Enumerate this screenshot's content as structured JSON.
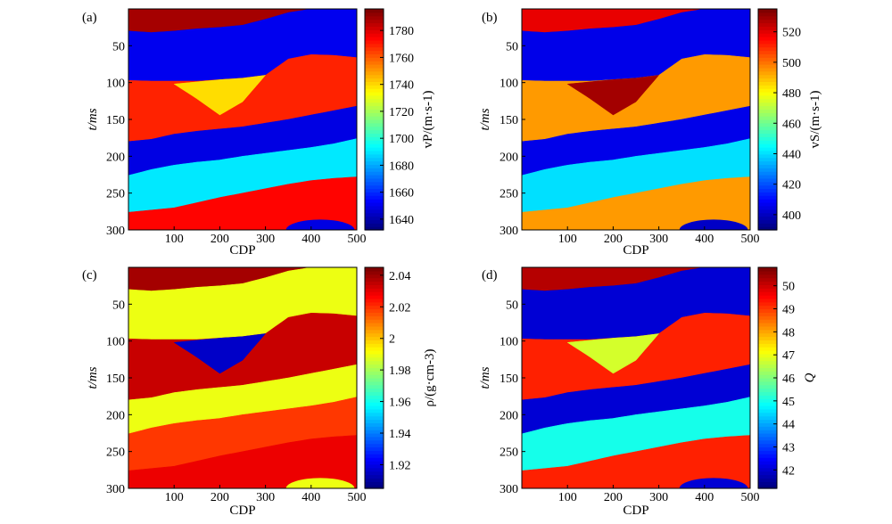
{
  "chart_data": [
    {
      "type": "heatmap",
      "panel_label": "(a)",
      "xlabel": "CDP",
      "ylabel": "t/ms",
      "colorbar_label": "vP/(m·s-1)",
      "xlim": [
        0,
        500
      ],
      "ylim": [
        300,
        0
      ],
      "xticks": [
        100,
        200,
        300,
        400,
        500
      ],
      "yticks": [
        50,
        100,
        150,
        200,
        250,
        300
      ],
      "clim": [
        1632,
        1796
      ],
      "cticks": [
        1640,
        1660,
        1680,
        1700,
        1720,
        1740,
        1760,
        1780
      ],
      "colormap": "jet",
      "layers": [
        {
          "top": "surface",
          "value": 1790
        },
        {
          "top": "h1",
          "value": 1650
        },
        {
          "top": "h2",
          "value": 1770
        },
        {
          "top": "h3",
          "value": 1648
        },
        {
          "top": "h4",
          "value": 1690
        },
        {
          "top": "h5",
          "value": 1775
        },
        {
          "top": "lens_top",
          "value": 1740,
          "lens": true
        },
        {
          "top": "dome",
          "value": 1648,
          "dome": true
        }
      ]
    },
    {
      "type": "heatmap",
      "panel_label": "(b)",
      "xlabel": "CDP",
      "ylabel": "t/ms",
      "colorbar_label": "vS/(m·s-1)",
      "xlim": [
        0,
        500
      ],
      "ylim": [
        300,
        0
      ],
      "xticks": [
        100,
        200,
        300,
        400,
        500
      ],
      "yticks": [
        50,
        100,
        150,
        200,
        250,
        300
      ],
      "clim": [
        390,
        535
      ],
      "cticks": [
        400,
        420,
        440,
        460,
        480,
        500,
        520
      ],
      "colormap": "jet",
      "layers": [
        {
          "top": "surface",
          "value": 520
        },
        {
          "top": "h1",
          "value": 405
        },
        {
          "top": "h2",
          "value": 495
        },
        {
          "top": "h3",
          "value": 405
        },
        {
          "top": "h4",
          "value": 440
        },
        {
          "top": "h5",
          "value": 495
        },
        {
          "top": "lens_top",
          "value": 530,
          "lens": true
        },
        {
          "top": "dome",
          "value": 400,
          "dome": true
        }
      ]
    },
    {
      "type": "heatmap",
      "panel_label": "(c)",
      "xlabel": "CDP",
      "ylabel": "t/ms",
      "colorbar_label": "ρ/(g·cm-3)",
      "xlim": [
        0,
        500
      ],
      "ylim": [
        300,
        0
      ],
      "xticks": [
        100,
        200,
        300,
        400,
        500
      ],
      "yticks": [
        50,
        100,
        150,
        200,
        250,
        300
      ],
      "clim": [
        1.905,
        2.045
      ],
      "cticks": [
        1.92,
        1.94,
        1.96,
        1.98,
        2.0,
        2.02,
        2.04
      ],
      "colormap": "jet",
      "layers": [
        {
          "top": "surface",
          "value": 2.04
        },
        {
          "top": "h1",
          "value": 1.99
        },
        {
          "top": "h2",
          "value": 2.035
        },
        {
          "top": "h3",
          "value": 1.99
        },
        {
          "top": "h4",
          "value": 2.02
        },
        {
          "top": "h5",
          "value": 2.03
        },
        {
          "top": "lens_top",
          "value": 1.915,
          "lens": true
        },
        {
          "top": "dome",
          "value": 1.99,
          "dome": true
        }
      ]
    },
    {
      "type": "heatmap",
      "panel_label": "(d)",
      "xlabel": "CDP",
      "ylabel": "t/ms",
      "colorbar_label": "Q",
      "xlim": [
        0,
        500
      ],
      "ylim": [
        300,
        0
      ],
      "xticks": [
        100,
        200,
        300,
        400,
        500
      ],
      "yticks": [
        50,
        100,
        150,
        200,
        250,
        300
      ],
      "clim": [
        41.2,
        50.8
      ],
      "cticks": [
        42,
        43,
        44,
        45,
        46,
        47,
        48,
        49,
        50
      ],
      "colormap": "jet",
      "layers": [
        {
          "top": "surface",
          "value": 50.3
        },
        {
          "top": "h1",
          "value": 42.0
        },
        {
          "top": "h2",
          "value": 49.3
        },
        {
          "top": "h3",
          "value": 42.0
        },
        {
          "top": "h4",
          "value": 45.0
        },
        {
          "top": "h5",
          "value": 49.3
        },
        {
          "top": "lens_top",
          "value": 46.8,
          "lens": true
        },
        {
          "top": "dome",
          "value": 42.0,
          "dome": true
        }
      ]
    }
  ],
  "horizons": {
    "cdp": [
      0,
      50,
      100,
      150,
      200,
      250,
      300,
      350,
      400,
      450,
      500
    ],
    "h1": [
      30,
      32,
      30,
      27,
      25,
      22,
      14,
      5,
      0,
      0,
      0
    ],
    "h2": [
      97,
      98,
      98,
      98,
      96,
      94,
      90,
      68,
      62,
      63,
      66
    ],
    "h3": [
      180,
      177,
      170,
      166,
      163,
      160,
      155,
      150,
      144,
      138,
      132
    ],
    "h4": [
      226,
      218,
      212,
      208,
      205,
      200,
      196,
      192,
      188,
      183,
      176
    ],
    "h5": [
      276,
      273,
      270,
      263,
      256,
      250,
      244,
      238,
      233,
      230,
      228
    ],
    "lens_top": [
      null,
      null,
      102,
      99,
      96,
      94,
      90,
      null,
      null,
      null,
      null
    ],
    "lens_bottom": [
      null,
      null,
      102,
      122,
      144,
      126,
      90,
      null,
      null,
      null,
      null
    ],
    "dome": [
      null,
      null,
      null,
      null,
      null,
      null,
      null,
      null,
      288,
      293,
      null
    ]
  }
}
